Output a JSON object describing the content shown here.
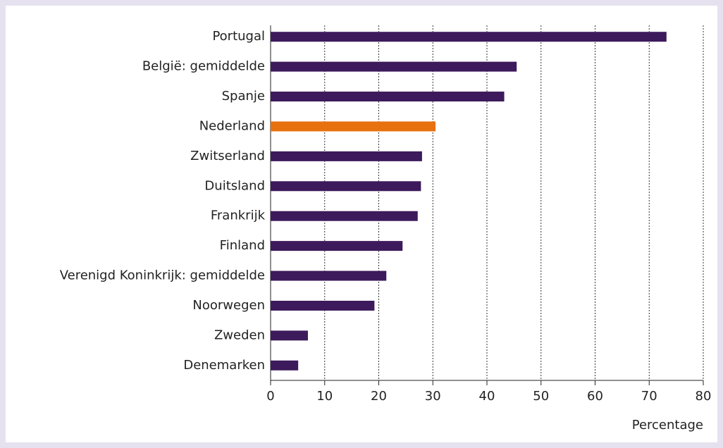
{
  "chart_data": {
    "type": "barh",
    "categories": [
      "Portugal",
      "België: gemiddelde",
      "Spanje",
      "Nederland",
      "Zwitserland",
      "Duitsland",
      "Frankrijk",
      "Finland",
      "Verenigd Koninkrijk: gemiddelde",
      "Noorwegen",
      "Zweden",
      "Denemarken"
    ],
    "values": [
      73.2,
      45.5,
      43.2,
      30.5,
      28,
      27.8,
      27.2,
      24.4,
      21.4,
      19.2,
      6.9,
      5.1
    ],
    "colors": [
      "#3c1a5b",
      "#3c1a5b",
      "#3c1a5b",
      "#e8710f",
      "#3c1a5b",
      "#3c1a5b",
      "#3c1a5b",
      "#3c1a5b",
      "#3c1a5b",
      "#3c1a5b",
      "#3c1a5b",
      "#3c1a5b"
    ],
    "xlabel": "Percentage",
    "xlim": [
      0,
      80
    ],
    "xticks": [
      0,
      10,
      20,
      30,
      40,
      50,
      60,
      70,
      80
    ],
    "grid": true
  }
}
